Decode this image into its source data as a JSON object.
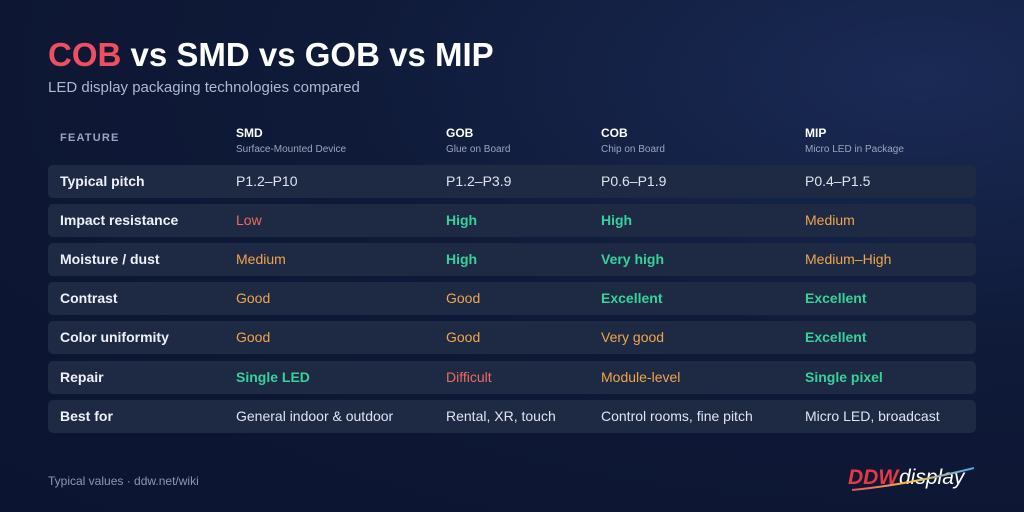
{
  "header": {
    "title_accent": "COB",
    "title_rest": " vs SMD vs GOB vs MIP",
    "subtitle": "LED display packaging technologies compared"
  },
  "table": {
    "feature_header": "FEATURE",
    "columns": [
      {
        "name": "SMD",
        "sub": "Surface-Mounted Device"
      },
      {
        "name": "GOB",
        "sub": "Glue on Board"
      },
      {
        "name": "COB",
        "sub": "Chip on Board"
      },
      {
        "name": "MIP",
        "sub": "Micro LED in Package"
      }
    ],
    "rows": [
      {
        "feature": "Typical pitch",
        "values": [
          "P1.2–P10",
          "P1.2–P3.9",
          "P0.6–P1.9",
          "P0.4–P1.5"
        ]
      },
      {
        "feature": "Impact resistance",
        "values": [
          "Low",
          "High",
          "High",
          "Medium"
        ]
      },
      {
        "feature": "Moisture / dust",
        "values": [
          "Medium",
          "High",
          "Very high",
          "Medium–High"
        ]
      },
      {
        "feature": "Contrast",
        "values": [
          "Good",
          "Good",
          "Excellent",
          "Excellent"
        ]
      },
      {
        "feature": "Color uniformity",
        "values": [
          "Good",
          "Good",
          "Very good",
          "Excellent"
        ]
      },
      {
        "feature": "Repair",
        "values": [
          "Single LED",
          "Difficult",
          "Module-level",
          "Single pixel"
        ]
      },
      {
        "feature": "Best for",
        "values": [
          "General indoor & outdoor",
          "Rental, XR, touch",
          "Control rooms, fine pitch",
          "Micro LED, broadcast"
        ]
      }
    ]
  },
  "colors": {
    "accent_red": "#ef4f5f",
    "rating_green": "#34d399",
    "rating_orange": "#f0a54a",
    "rating_red": "#ef6a5e",
    "row_bg": "#1e2944",
    "page_bg": "#0f1a38"
  },
  "footer": {
    "note": "Typical values · ddw.net/wiki",
    "logo_text_a": "DDW",
    "logo_text_b": "display"
  }
}
